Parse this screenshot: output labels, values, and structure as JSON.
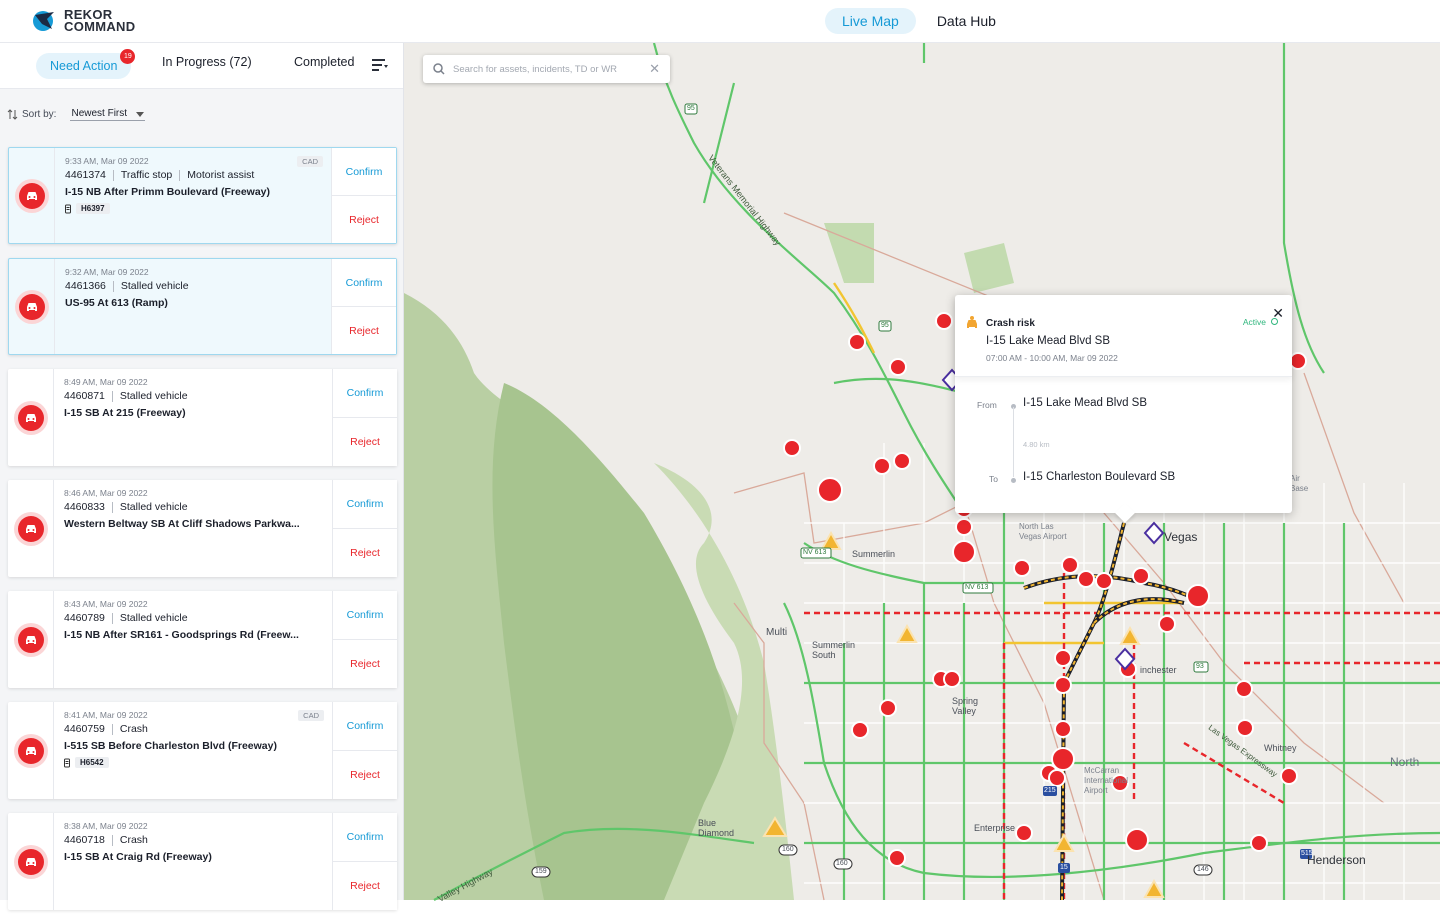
{
  "app": {
    "brand_line1": "REKOR",
    "brand_line2": "COMMAND"
  },
  "topnav": {
    "tabs": [
      {
        "label": "Live Map",
        "active": true
      },
      {
        "label": "Data Hub",
        "active": false
      }
    ]
  },
  "left": {
    "tabs": {
      "need_action": "Need Action",
      "need_action_count": "19",
      "in_progress": "In Progress (72)",
      "completed": "Completed"
    },
    "sort": {
      "label": "Sort by:",
      "value": "Newest First"
    },
    "actions": {
      "confirm": "Confirm",
      "reject": "Reject"
    },
    "incidents": [
      {
        "time": "9:33 AM, Mar 09 2022",
        "id": "4461374",
        "types": [
          "Traffic stop",
          "Motorist assist"
        ],
        "location": "I-15 NB After Primm Boulevard (Freeway)",
        "unit": "H6397",
        "cad": "CAD",
        "highlight": true
      },
      {
        "time": "9:32 AM, Mar 09 2022",
        "id": "4461366",
        "types": [
          "Stalled vehicle"
        ],
        "location": "US-95  At 613 (Ramp)",
        "unit": "",
        "cad": "",
        "highlight": true
      },
      {
        "time": "8:49 AM, Mar 09 2022",
        "id": "4460871",
        "types": [
          "Stalled vehicle"
        ],
        "location": "I-15 SB At 215 (Freeway)",
        "unit": "",
        "cad": "",
        "highlight": false
      },
      {
        "time": "8:46 AM, Mar 09 2022",
        "id": "4460833",
        "types": [
          "Stalled vehicle"
        ],
        "location": "Western Beltway SB At Cliff Shadows Parkwa...",
        "unit": "",
        "cad": "",
        "highlight": false
      },
      {
        "time": "8:43 AM, Mar 09 2022",
        "id": "4460789",
        "types": [
          "Stalled vehicle"
        ],
        "location": "I-15 NB After SR161 - Goodsprings Rd (Freew...",
        "unit": "",
        "cad": "",
        "highlight": false
      },
      {
        "time": "8:41 AM, Mar 09 2022",
        "id": "4460759",
        "types": [
          "Crash"
        ],
        "location": "I-515 SB Before Charleston Blvd (Freeway)",
        "unit": "H6542",
        "cad": "CAD",
        "highlight": false
      },
      {
        "time": "8:38 AM, Mar 09 2022",
        "id": "4460718",
        "types": [
          "Crash"
        ],
        "location": "I-15 SB At Craig Rd (Freeway)",
        "unit": "",
        "cad": "",
        "highlight": false
      }
    ]
  },
  "map": {
    "search_placeholder": "Search for assets, incidents, TD or WR",
    "labels": {
      "veterans": "Veterans Memorial Highway",
      "summerlin": "Summerlin",
      "summerlin_south": "Summerlin South",
      "multi": "Multi",
      "spring_valley": "Spring Valley",
      "enterprise": "Enterprise",
      "blue_diamond": "Blue Diamond",
      "vegas": "Vegas",
      "winchester": "inchester",
      "whitney": "Whitney",
      "henderson": "Henderson",
      "north": "North",
      "north_las_vegas_airport": "North Las Vegas Airport",
      "mccarran": "McCarran International Airport",
      "air_base": "Air Base",
      "las_vegas_expressway": "Las Vegas Expressway",
      "valley_highway": "Valley Highway",
      "nv613": "NV 613",
      "nv613b": "NV 613",
      "r95": "95",
      "r95b": "95",
      "r160": "160",
      "r160b": "160",
      "r159": "159",
      "r215": "215",
      "r515": "515",
      "r146": "146",
      "r93": "93",
      "r15": "15",
      "r604": "604"
    },
    "popup": {
      "type": "Crash risk",
      "title": "I-15 Lake Mead Blvd SB",
      "time": "07:00 AM - 10:00 AM, Mar 09 2022",
      "status": "Active",
      "from_label": "From",
      "from": "I-15 Lake Mead Blvd SB",
      "distance": "4.80 km",
      "to_label": "To",
      "to": "I-15 Charleston Boulevard SB"
    }
  },
  "colors": {
    "accent": "#169ad6",
    "danger": "#e8262b",
    "active": "#2fb67d",
    "warning": "#f2b531"
  }
}
